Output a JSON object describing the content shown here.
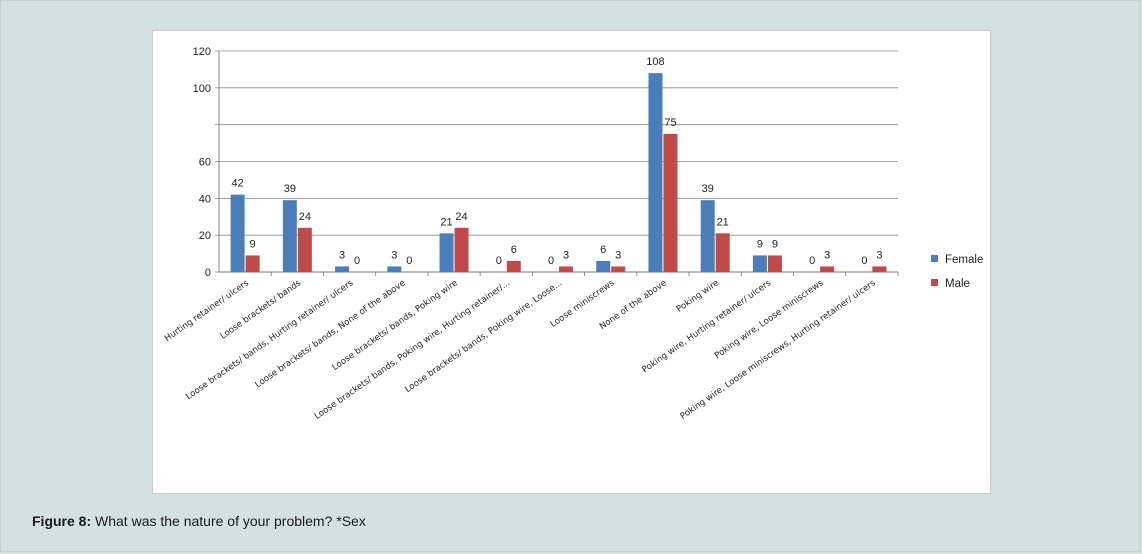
{
  "caption": {
    "label": "Figure 8:",
    "text": " What was the nature of your problem? *Sex"
  },
  "colors": {
    "female": "#4a7ebb",
    "male": "#be4b48",
    "grid": "#8c8c8c"
  },
  "chart_data": {
    "type": "bar",
    "categories": [
      "Hurting retainer/ ulcers",
      "Loose brackets/ bands",
      "Loose brackets/ bands, Hurting retainer/ ulcers",
      "Loose brackets/ bands, None of the above",
      "Loose brackets/ bands, Poking wire",
      "Loose brackets/ bands, Poking wire, Hurting retainer/...",
      "Loose brackets/ bands, Poking wire, Loose...",
      "Loose miniscrews",
      "None of the above",
      "Poking wire",
      "Poking wire, Hurting retainer/ ulcers",
      "Poking wire, Loose miniscrews",
      "Poking wire, Loose miniscrews, Hurting retainer/ ulcers"
    ],
    "series": [
      {
        "name": "Female",
        "values": [
          42,
          39,
          3,
          3,
          21,
          0,
          0,
          6,
          108,
          39,
          9,
          0,
          0
        ]
      },
      {
        "name": "Male",
        "values": [
          9,
          24,
          0,
          0,
          24,
          6,
          3,
          3,
          75,
          21,
          9,
          3,
          3
        ]
      }
    ],
    "y_ticks": [
      "0",
      "20",
      "40",
      "60",
      "",
      "100",
      "120"
    ],
    "ylim": [
      0,
      120
    ],
    "grid": true,
    "legend_position": "right",
    "title": "",
    "xlabel": "",
    "ylabel": ""
  }
}
